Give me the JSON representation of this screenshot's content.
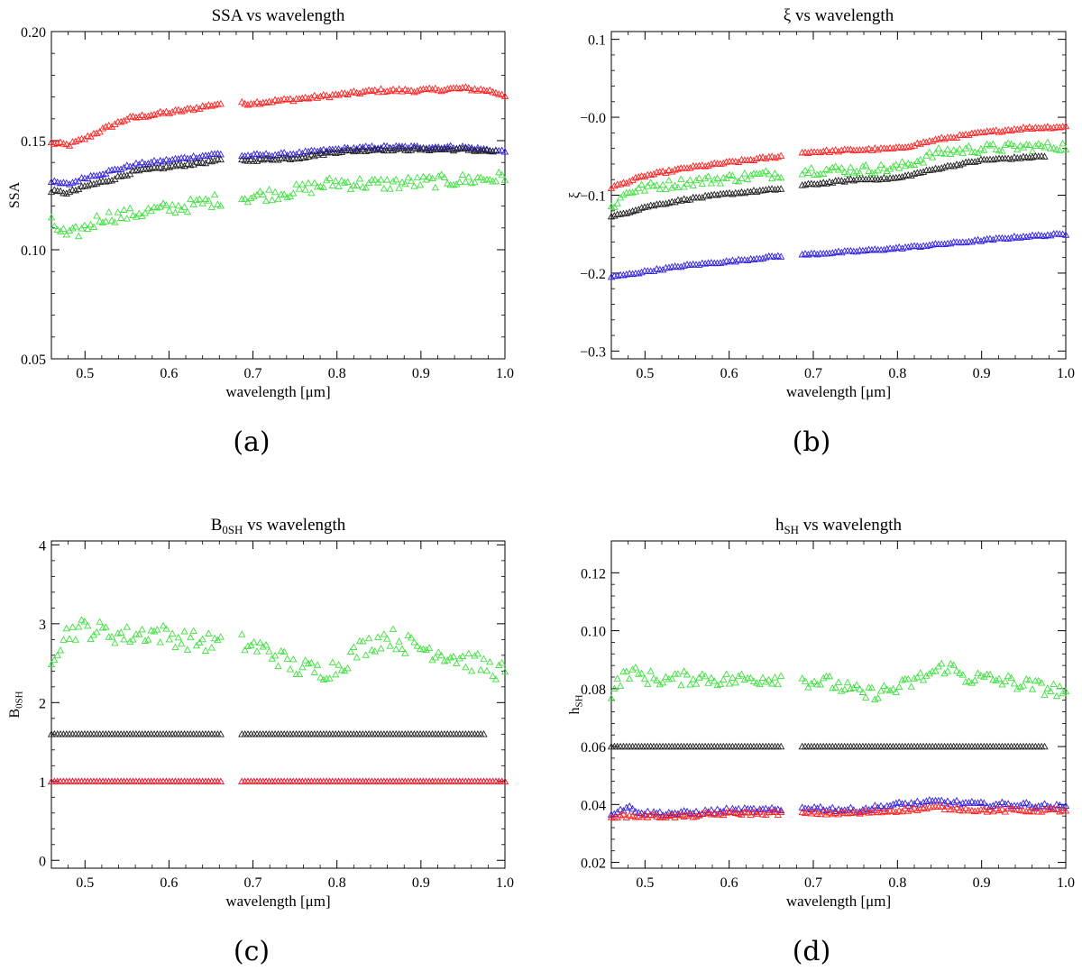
{
  "figure": {
    "panels": [
      {
        "caption": "(a)"
      },
      {
        "caption": "(b)"
      },
      {
        "caption": "(c)"
      },
      {
        "caption": "(d)"
      }
    ]
  },
  "chart_data": [
    {
      "type": "scatter",
      "title": "SSA vs wavelength",
      "title_base": "SSA vs wavelength",
      "title_sub": "",
      "title_rest": "",
      "xlabel": "wavelength [μm]",
      "ylabel": "SSA",
      "ylabel_base": "SSA",
      "ylabel_sub": "",
      "xlim": [
        0.46,
        1.0
      ],
      "ylim": [
        0.05,
        0.2
      ],
      "xticks": [
        "0.5",
        "0.6",
        "0.7",
        "0.8",
        "0.9",
        "1.0"
      ],
      "yticks": [
        "0.05",
        "0.10",
        "0.15",
        "0.20"
      ],
      "gap": [
        0.665,
        0.685
      ],
      "series": [
        {
          "name": "red",
          "color": "#ff2020",
          "x_end": 1.0,
          "noise": 0.0008,
          "points": [
            [
              0.46,
              0.149
            ],
            [
              0.48,
              0.148
            ],
            [
              0.5,
              0.151
            ],
            [
              0.52,
              0.155
            ],
            [
              0.55,
              0.16
            ],
            [
              0.58,
              0.162
            ],
            [
              0.62,
              0.164
            ],
            [
              0.66,
              0.167
            ],
            [
              0.69,
              0.167
            ],
            [
              0.75,
              0.169
            ],
            [
              0.8,
              0.171
            ],
            [
              0.85,
              0.173
            ],
            [
              0.9,
              0.173
            ],
            [
              0.95,
              0.174
            ],
            [
              0.98,
              0.173
            ],
            [
              1.0,
              0.171
            ]
          ]
        },
        {
          "name": "blue",
          "color": "#3020e0",
          "x_end": 1.0,
          "noise": 0.0007,
          "points": [
            [
              0.46,
              0.131
            ],
            [
              0.48,
              0.13
            ],
            [
              0.5,
              0.133
            ],
            [
              0.53,
              0.136
            ],
            [
              0.56,
              0.139
            ],
            [
              0.6,
              0.141
            ],
            [
              0.66,
              0.144
            ],
            [
              0.69,
              0.143
            ],
            [
              0.75,
              0.144
            ],
            [
              0.8,
              0.146
            ],
            [
              0.85,
              0.147
            ],
            [
              0.9,
              0.147
            ],
            [
              0.95,
              0.147
            ],
            [
              1.0,
              0.145
            ]
          ]
        },
        {
          "name": "black",
          "color": "#202020",
          "x_end": 0.99,
          "noise": 0.0006,
          "points": [
            [
              0.46,
              0.127
            ],
            [
              0.48,
              0.126
            ],
            [
              0.5,
              0.129
            ],
            [
              0.53,
              0.132
            ],
            [
              0.56,
              0.136
            ],
            [
              0.6,
              0.138
            ],
            [
              0.66,
              0.141
            ],
            [
              0.69,
              0.141
            ],
            [
              0.75,
              0.142
            ],
            [
              0.8,
              0.145
            ],
            [
              0.85,
              0.146
            ],
            [
              0.9,
              0.146
            ],
            [
              0.95,
              0.146
            ],
            [
              0.99,
              0.145
            ]
          ]
        },
        {
          "name": "green",
          "color": "#40e040",
          "x_end": 1.0,
          "noise": 0.003,
          "points": [
            [
              0.46,
              0.112
            ],
            [
              0.48,
              0.106
            ],
            [
              0.5,
              0.11
            ],
            [
              0.52,
              0.115
            ],
            [
              0.55,
              0.116
            ],
            [
              0.58,
              0.118
            ],
            [
              0.62,
              0.12
            ],
            [
              0.66,
              0.123
            ],
            [
              0.69,
              0.124
            ],
            [
              0.75,
              0.127
            ],
            [
              0.8,
              0.131
            ],
            [
              0.85,
              0.13
            ],
            [
              0.9,
              0.131
            ],
            [
              0.95,
              0.132
            ],
            [
              1.0,
              0.133
            ]
          ]
        }
      ]
    },
    {
      "type": "scatter",
      "title": "ξ vs wavelength",
      "title_base": "ξ vs wavelength",
      "title_sub": "",
      "title_rest": "",
      "xlabel": "wavelength [μm]",
      "ylabel": "ξ",
      "ylabel_base": "ξ",
      "ylabel_sub": "",
      "xlim": [
        0.46,
        1.0
      ],
      "ylim": [
        -0.31,
        0.11
      ],
      "xticks": [
        "0.5",
        "0.6",
        "0.7",
        "0.8",
        "0.9",
        "1.0"
      ],
      "yticks": [
        "−0.3",
        "−0.2",
        "−0.1",
        "−0.0",
        "0.1"
      ],
      "ytick_values": [
        -0.3,
        -0.2,
        -0.1,
        0.0,
        0.1
      ],
      "gap": [
        0.665,
        0.685
      ],
      "series": [
        {
          "name": "red",
          "color": "#ff2020",
          "x_end": 1.0,
          "noise": 0.0015,
          "points": [
            [
              0.46,
              -0.09
            ],
            [
              0.5,
              -0.075
            ],
            [
              0.55,
              -0.065
            ],
            [
              0.6,
              -0.058
            ],
            [
              0.66,
              -0.05
            ],
            [
              0.69,
              -0.045
            ],
            [
              0.75,
              -0.042
            ],
            [
              0.8,
              -0.04
            ],
            [
              0.85,
              -0.028
            ],
            [
              0.9,
              -0.02
            ],
            [
              0.95,
              -0.014
            ],
            [
              1.0,
              -0.012
            ]
          ]
        },
        {
          "name": "green",
          "color": "#40e040",
          "x_end": 1.0,
          "noise": 0.006,
          "points": [
            [
              0.46,
              -0.115
            ],
            [
              0.48,
              -0.095
            ],
            [
              0.5,
              -0.09
            ],
            [
              0.55,
              -0.083
            ],
            [
              0.6,
              -0.078
            ],
            [
              0.66,
              -0.072
            ],
            [
              0.69,
              -0.068
            ],
            [
              0.75,
              -0.067
            ],
            [
              0.8,
              -0.065
            ],
            [
              0.85,
              -0.045
            ],
            [
              0.9,
              -0.04
            ],
            [
              0.95,
              -0.038
            ],
            [
              1.0,
              -0.037
            ]
          ]
        },
        {
          "name": "black",
          "color": "#202020",
          "x_end": 0.975,
          "noise": 0.0012,
          "points": [
            [
              0.46,
              -0.128
            ],
            [
              0.5,
              -0.115
            ],
            [
              0.55,
              -0.105
            ],
            [
              0.6,
              -0.098
            ],
            [
              0.66,
              -0.092
            ],
            [
              0.69,
              -0.087
            ],
            [
              0.75,
              -0.08
            ],
            [
              0.8,
              -0.078
            ],
            [
              0.85,
              -0.065
            ],
            [
              0.9,
              -0.055
            ],
            [
              0.975,
              -0.05
            ]
          ]
        },
        {
          "name": "blue",
          "color": "#3020e0",
          "x_end": 1.0,
          "noise": 0.0012,
          "points": [
            [
              0.46,
              -0.205
            ],
            [
              0.5,
              -0.198
            ],
            [
              0.55,
              -0.19
            ],
            [
              0.6,
              -0.185
            ],
            [
              0.66,
              -0.178
            ],
            [
              0.69,
              -0.176
            ],
            [
              0.75,
              -0.172
            ],
            [
              0.8,
              -0.168
            ],
            [
              0.85,
              -0.163
            ],
            [
              0.9,
              -0.158
            ],
            [
              0.95,
              -0.153
            ],
            [
              1.0,
              -0.15
            ]
          ]
        }
      ]
    },
    {
      "type": "scatter",
      "title": "B0SH vs wavelength",
      "title_base": "B",
      "title_sub": "0SH",
      "title_rest": " vs wavelength",
      "xlabel": "wavelength [μm]",
      "ylabel": "B0SH",
      "ylabel_base": "B",
      "ylabel_sub": "0SH",
      "xlim": [
        0.46,
        1.0
      ],
      "ylim": [
        -0.1,
        4.05
      ],
      "xticks": [
        "0.5",
        "0.6",
        "0.7",
        "0.8",
        "0.9",
        "1.0"
      ],
      "yticks": [
        "0",
        "1",
        "2",
        "3",
        "4"
      ],
      "gap": [
        0.665,
        0.685
      ],
      "series": [
        {
          "name": "green",
          "color": "#40e040",
          "x_end": 1.0,
          "noise": 0.13,
          "points": [
            [
              0.46,
              2.6
            ],
            [
              0.48,
              2.9
            ],
            [
              0.5,
              2.95
            ],
            [
              0.52,
              2.9
            ],
            [
              0.55,
              2.85
            ],
            [
              0.58,
              2.9
            ],
            [
              0.62,
              2.8
            ],
            [
              0.66,
              2.75
            ],
            [
              0.69,
              2.75
            ],
            [
              0.72,
              2.65
            ],
            [
              0.75,
              2.45
            ],
            [
              0.78,
              2.4
            ],
            [
              0.8,
              2.45
            ],
            [
              0.83,
              2.7
            ],
            [
              0.86,
              2.85
            ],
            [
              0.88,
              2.75
            ],
            [
              0.92,
              2.65
            ],
            [
              0.96,
              2.52
            ],
            [
              1.0,
              2.38
            ]
          ]
        },
        {
          "name": "black",
          "color": "#202020",
          "x_end": 0.975,
          "noise": 0.0,
          "points": [
            [
              0.46,
              1.6
            ],
            [
              0.975,
              1.6
            ]
          ]
        },
        {
          "name": "blue",
          "color": "#3020e0",
          "x_end": 1.0,
          "noise": 0.0,
          "points": [
            [
              0.46,
              1.0
            ],
            [
              1.0,
              1.0
            ]
          ]
        },
        {
          "name": "red",
          "color": "#ff2020",
          "x_end": 1.0,
          "noise": 0.0,
          "points": [
            [
              0.46,
              1.0
            ],
            [
              1.0,
              1.0
            ]
          ]
        }
      ]
    },
    {
      "type": "scatter",
      "title": "hSH vs wavelength",
      "title_base": "h",
      "title_sub": "SH",
      "title_rest": " vs wavelength",
      "xlabel": "wavelength [μm]",
      "ylabel": "hSH",
      "ylabel_base": "h",
      "ylabel_sub": "SH",
      "xlim": [
        0.46,
        1.0
      ],
      "ylim": [
        0.018,
        0.131
      ],
      "xticks": [
        "0.5",
        "0.6",
        "0.7",
        "0.8",
        "0.9",
        "1.0"
      ],
      "yticks": [
        "0.02",
        "0.04",
        "0.06",
        "0.08",
        "0.10",
        "0.12"
      ],
      "gap": [
        0.665,
        0.685
      ],
      "series": [
        {
          "name": "green",
          "color": "#40e040",
          "x_end": 1.0,
          "noise": 0.0025,
          "points": [
            [
              0.46,
              0.079
            ],
            [
              0.48,
              0.086
            ],
            [
              0.5,
              0.084
            ],
            [
              0.53,
              0.083
            ],
            [
              0.56,
              0.084
            ],
            [
              0.6,
              0.083
            ],
            [
              0.66,
              0.084
            ],
            [
              0.69,
              0.083
            ],
            [
              0.72,
              0.082
            ],
            [
              0.76,
              0.078
            ],
            [
              0.8,
              0.08
            ],
            [
              0.83,
              0.084
            ],
            [
              0.86,
              0.088
            ],
            [
              0.88,
              0.084
            ],
            [
              0.92,
              0.083
            ],
            [
              0.96,
              0.081
            ],
            [
              1.0,
              0.079
            ]
          ]
        },
        {
          "name": "black",
          "color": "#202020",
          "x_end": 0.975,
          "noise": 0.0,
          "points": [
            [
              0.46,
              0.06
            ],
            [
              0.975,
              0.06
            ]
          ]
        },
        {
          "name": "blue",
          "color": "#3020e0",
          "x_end": 1.0,
          "noise": 0.0008,
          "points": [
            [
              0.46,
              0.037
            ],
            [
              0.48,
              0.039
            ],
            [
              0.5,
              0.037
            ],
            [
              0.55,
              0.037
            ],
            [
              0.6,
              0.038
            ],
            [
              0.66,
              0.038
            ],
            [
              0.69,
              0.039
            ],
            [
              0.75,
              0.038
            ],
            [
              0.8,
              0.04
            ],
            [
              0.85,
              0.041
            ],
            [
              0.9,
              0.04
            ],
            [
              0.95,
              0.04
            ],
            [
              1.0,
              0.039
            ]
          ]
        },
        {
          "name": "red",
          "color": "#ff2020",
          "x_end": 1.0,
          "noise": 0.0006,
          "points": [
            [
              0.46,
              0.036
            ],
            [
              0.5,
              0.036
            ],
            [
              0.55,
              0.036
            ],
            [
              0.6,
              0.037
            ],
            [
              0.66,
              0.037
            ],
            [
              0.69,
              0.037
            ],
            [
              0.75,
              0.037
            ],
            [
              0.8,
              0.038
            ],
            [
              0.85,
              0.039
            ],
            [
              0.9,
              0.038
            ],
            [
              0.95,
              0.038
            ],
            [
              1.0,
              0.038
            ]
          ]
        }
      ]
    }
  ]
}
